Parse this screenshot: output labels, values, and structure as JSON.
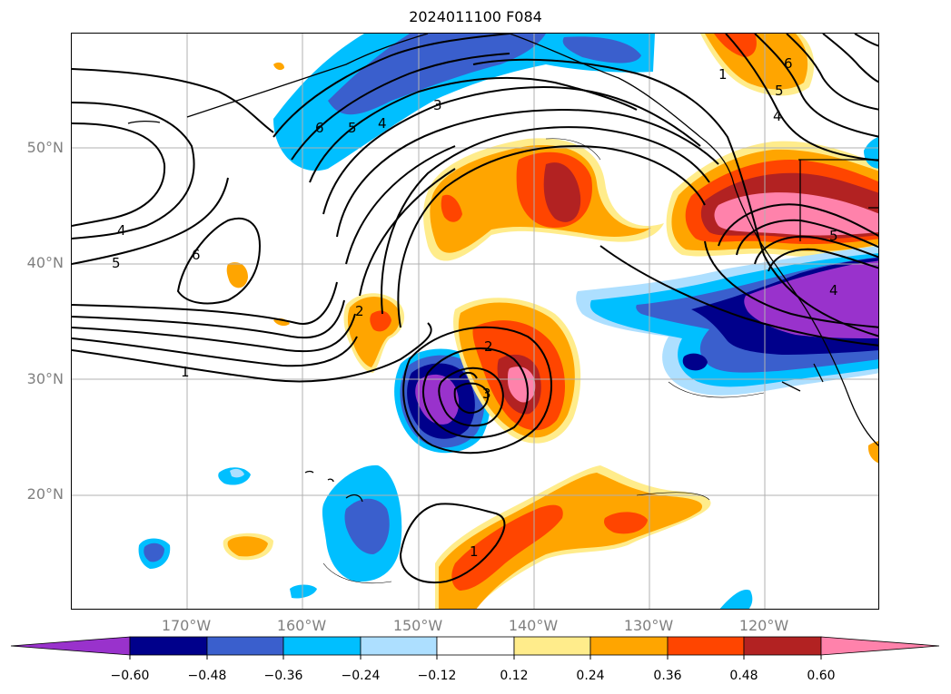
{
  "title": "2024011100 F084",
  "map": {
    "type": "filled contour anomaly map with black line contours over North Pacific",
    "lat_labels": [
      "50°N",
      "40°N",
      "30°N",
      "20°N"
    ],
    "lon_labels": [
      "170°W",
      "160°W",
      "150°W",
      "140°W",
      "130°W",
      "120°W"
    ],
    "contour_labels": [
      "1",
      "2",
      "3",
      "4",
      "5",
      "6",
      "4",
      "5",
      "6",
      "1",
      "2",
      "3",
      "4",
      "5",
      "6",
      "5",
      "4",
      "1"
    ],
    "grid": true
  },
  "colorbar": {
    "ticks": [
      "−0.60",
      "−0.48",
      "−0.36",
      "−0.24",
      "−0.12",
      "0.12",
      "0.24",
      "0.36",
      "0.48",
      "0.60"
    ],
    "colors": [
      "#9932CC",
      "#00008B",
      "#3A5FCD",
      "#00BFFF",
      "#ADDFFF",
      "#FFFFFF",
      "#FFEC8B",
      "#FFA500",
      "#FF4500",
      "#B22222",
      "#FF82AB"
    ]
  }
}
